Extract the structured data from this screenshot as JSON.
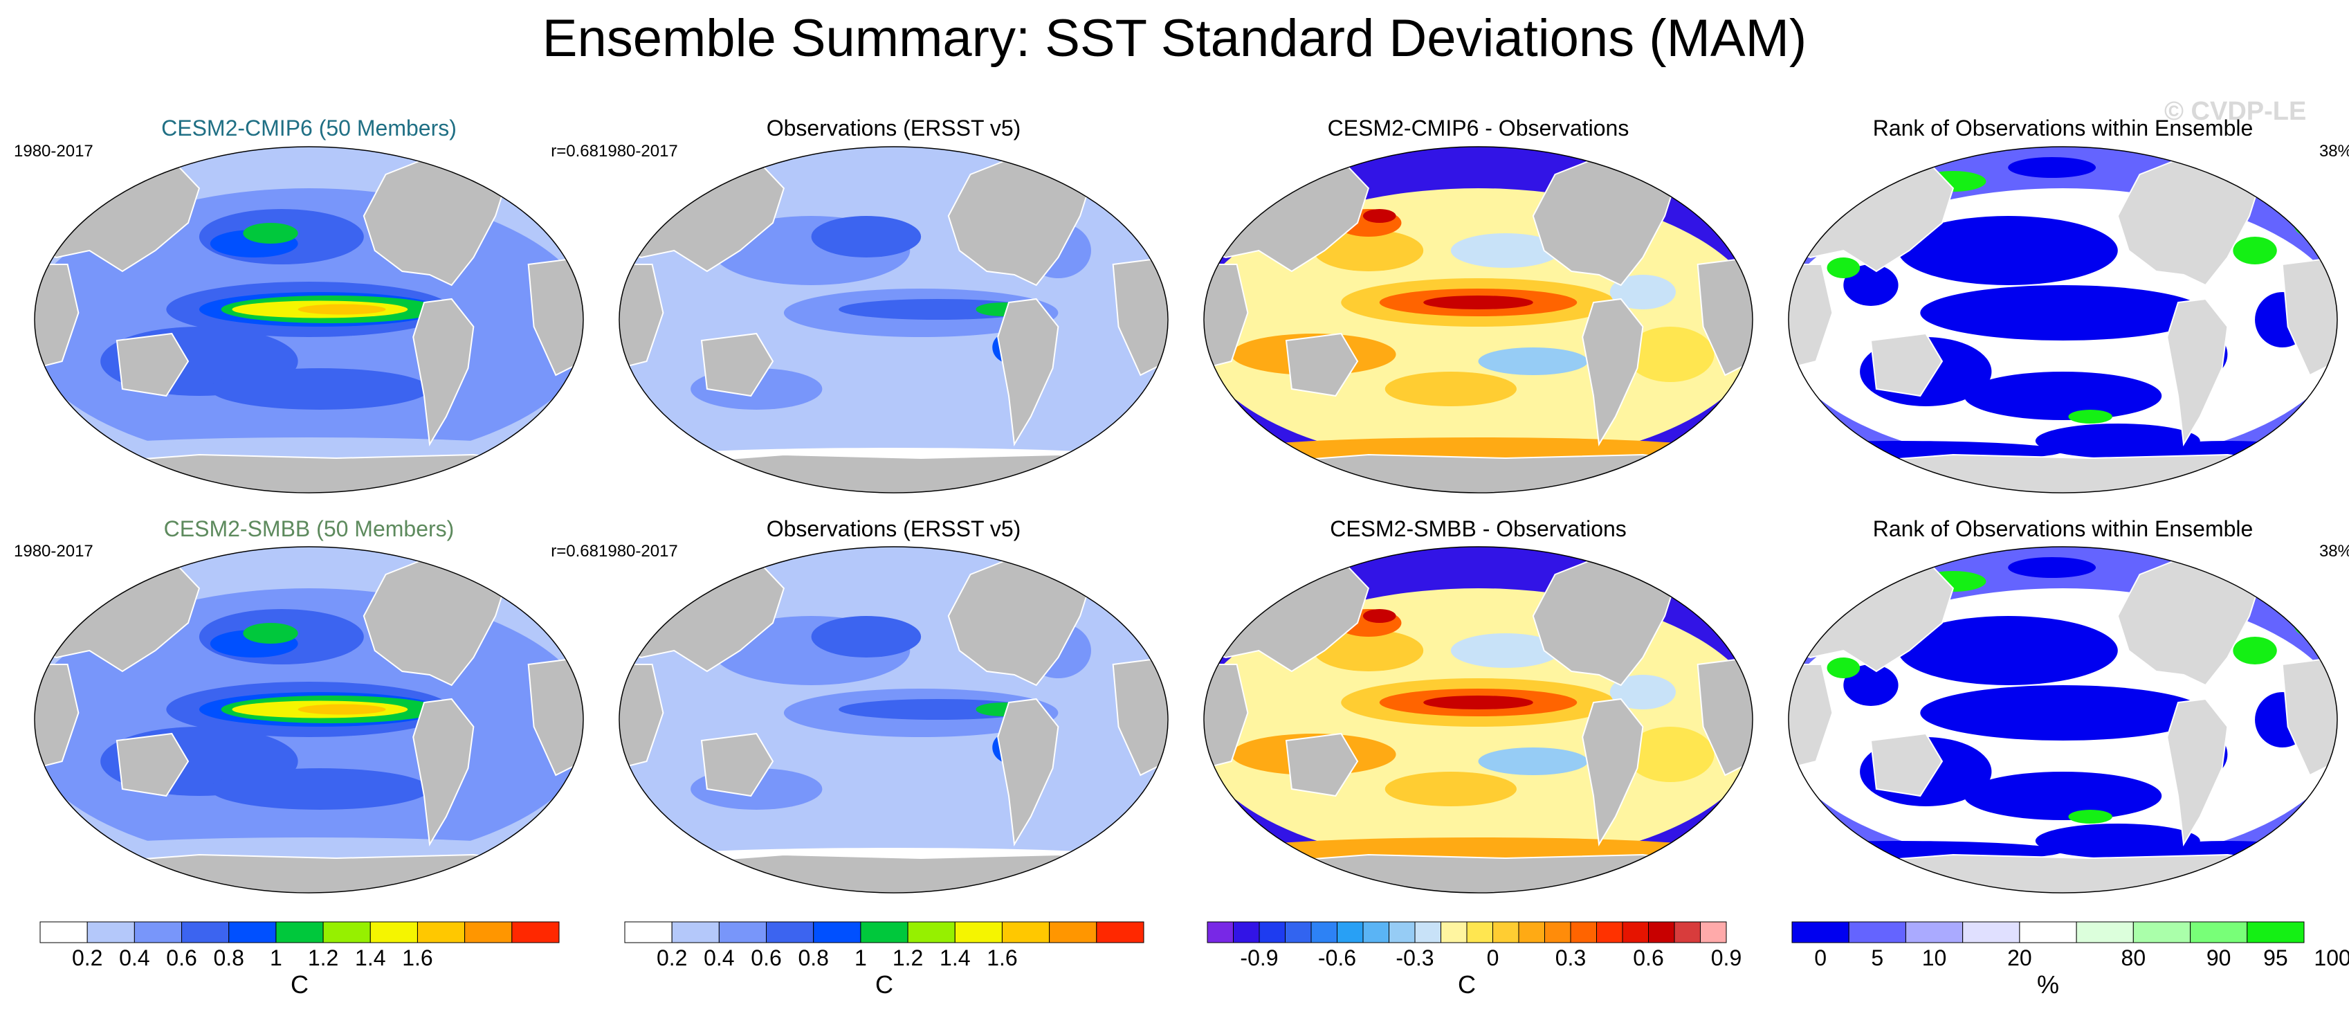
{
  "figure": {
    "title": "Ensemble Summary: SST Standard Deviations (MAM)",
    "watermark": "© CVDP-LE"
  },
  "chart_data": [
    {
      "type": "heatmap",
      "title": "CESM2-CMIP6 (50 Members)",
      "title_color": "#1f6f84",
      "left_label": "1980-2017",
      "right_label": "r=0.68",
      "field": "model_std",
      "colorbar": "std"
    },
    {
      "type": "heatmap",
      "title": "Observations (ERSST v5)",
      "title_color": "#000000",
      "left_label": "1980-2017",
      "right_label": "",
      "field": "obs_std",
      "colorbar": "std"
    },
    {
      "type": "heatmap",
      "title": "CESM2-CMIP6 - Observations",
      "title_color": "#000000",
      "left_label": "",
      "right_label": "",
      "field": "diff",
      "colorbar": "diff"
    },
    {
      "type": "heatmap",
      "title": "Rank of Observations within Ensemble",
      "title_color": "#000000",
      "left_label": "",
      "right_label": "38%",
      "field": "rank",
      "colorbar": "rank"
    },
    {
      "type": "heatmap",
      "title": "CESM2-SMBB (50 Members)",
      "title_color": "#5d8a5d",
      "left_label": "1980-2017",
      "right_label": "r=0.68",
      "field": "model_std",
      "colorbar": "std"
    },
    {
      "type": "heatmap",
      "title": "Observations (ERSST v5)",
      "title_color": "#000000",
      "left_label": "1980-2017",
      "right_label": "",
      "field": "obs_std",
      "colorbar": "std"
    },
    {
      "type": "heatmap",
      "title": "CESM2-SMBB - Observations",
      "title_color": "#000000",
      "left_label": "",
      "right_label": "",
      "field": "diff",
      "colorbar": "diff"
    },
    {
      "type": "heatmap",
      "title": "Rank of Observations within Ensemble",
      "title_color": "#000000",
      "left_label": "",
      "right_label": "38%",
      "field": "rank",
      "colorbar": "rank"
    }
  ],
  "colorbars": {
    "std": {
      "unit": "C",
      "colors": [
        "#ffffff",
        "#b4c8fa",
        "#7896fa",
        "#3c64f0",
        "#0050ff",
        "#00c83c",
        "#96f000",
        "#f5f500",
        "#ffc800",
        "#ff9600",
        "#ff2800"
      ],
      "ticks": [
        "0.2",
        "0.4",
        "0.6",
        "0.8",
        "1",
        "1.2",
        "1.4",
        "1.6"
      ]
    },
    "diff": {
      "unit": "C",
      "colors": [
        "#7828e6",
        "#3214e6",
        "#1e3cf0",
        "#3264f0",
        "#2d82f5",
        "#28a0f5",
        "#5ab4f5",
        "#96ccf5",
        "#c8e2f8",
        "#fff5a0",
        "#ffe650",
        "#ffcd32",
        "#ffaa14",
        "#ff8c0a",
        "#ff6400",
        "#ff3200",
        "#e61400",
        "#c80000",
        "#d83c3c",
        "#ffaaaa"
      ],
      "ticks": [
        "-0.9",
        "-0.6",
        "-0.3",
        "0",
        "0.3",
        "0.6",
        "0.9"
      ]
    },
    "rank": {
      "unit": "%",
      "colors": [
        "#0000f0",
        "#6464ff",
        "#aaaaff",
        "#e0e0ff",
        "#ffffff",
        "#dcffdc",
        "#aaffaa",
        "#78ff78",
        "#14f014"
      ],
      "ticks": [
        "0",
        "5",
        "10",
        "20",
        "80",
        "90",
        "95",
        "100"
      ]
    }
  }
}
